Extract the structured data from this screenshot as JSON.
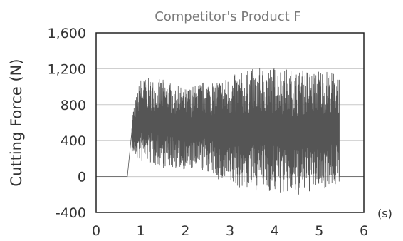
{
  "chart_data": {
    "type": "line",
    "title": "Competitor's Product F",
    "ylabel": "Cutting Force (N)",
    "xunit": "(s)",
    "xlim": [
      0,
      6
    ],
    "ylim": [
      -400,
      1600
    ],
    "xticks": [
      "0",
      "1",
      "2",
      "3",
      "4",
      "5",
      "6"
    ],
    "xtick_values": [
      0,
      1,
      2,
      3,
      4,
      5,
      6
    ],
    "yticks": [
      "1,600",
      "1,200",
      "800",
      "400",
      "0",
      "-400"
    ],
    "ytick_values": [
      1600,
      1200,
      800,
      400,
      0,
      -400
    ],
    "grid": true,
    "series": [
      {
        "color": "#555555",
        "baseline_before": {
          "x": [
            0,
            0.7
          ],
          "y": 0
        },
        "ramp": {
          "x": [
            0.7,
            0.8
          ],
          "y": [
            0,
            500
          ]
        },
        "oscillation": {
          "x_start": 0.8,
          "x_end": 5.45,
          "envelope": [
            {
              "x": 0.8,
              "min": 250,
              "max": 700
            },
            {
              "x": 1.0,
              "min": 150,
              "max": 1100
            },
            {
              "x": 1.5,
              "min": 100,
              "max": 1080
            },
            {
              "x": 2.0,
              "min": 80,
              "max": 980
            },
            {
              "x": 2.5,
              "min": 50,
              "max": 1080
            },
            {
              "x": 2.9,
              "min": -100,
              "max": 1100
            },
            {
              "x": 3.5,
              "min": -150,
              "max": 1200
            },
            {
              "x": 4.0,
              "min": -180,
              "max": 1230
            },
            {
              "x": 4.5,
              "min": -220,
              "max": 1180
            },
            {
              "x": 5.0,
              "min": -150,
              "max": 1210
            },
            {
              "x": 5.45,
              "min": -100,
              "max": 1150
            }
          ]
        },
        "baseline_after": {
          "x": [
            5.45,
            6
          ],
          "y": 0
        }
      }
    ]
  }
}
